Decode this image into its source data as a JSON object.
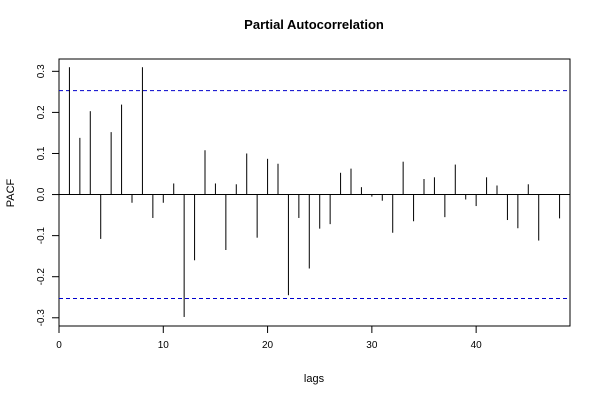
{
  "chart_data": {
    "type": "bar",
    "title": "Partial Autocorrelation",
    "xlabel": "lags",
    "ylabel": "PACF",
    "xlim": [
      0,
      49
    ],
    "ylim": [
      -0.32,
      0.33
    ],
    "xticks": [
      0,
      10,
      20,
      30,
      40
    ],
    "yticks": [
      -0.3,
      -0.2,
      -0.1,
      0.0,
      0.1,
      0.2,
      0.3
    ],
    "ytick_labels": [
      "-0.3",
      "-0.2",
      "-0.1",
      "0.0",
      "0.1",
      "0.2",
      "0.3"
    ],
    "confidence_band": [
      -0.253,
      0.253
    ],
    "confidence_color": "#0000cc",
    "bar_color": "#000000",
    "grid": false,
    "x": [
      1,
      2,
      3,
      4,
      5,
      6,
      7,
      8,
      9,
      10,
      11,
      12,
      13,
      14,
      15,
      16,
      17,
      18,
      19,
      20,
      21,
      22,
      23,
      24,
      25,
      26,
      27,
      28,
      29,
      30,
      31,
      32,
      33,
      34,
      35,
      36,
      37,
      38,
      39,
      40,
      41,
      42,
      43,
      44,
      45,
      46,
      47,
      48
    ],
    "values": [
      0.31,
      0.138,
      0.203,
      -0.108,
      0.152,
      0.219,
      -0.02,
      0.31,
      -0.057,
      -0.02,
      0.027,
      -0.298,
      -0.16,
      0.108,
      0.027,
      -0.135,
      0.025,
      0.1,
      -0.105,
      0.087,
      0.075,
      -0.245,
      -0.057,
      -0.18,
      -0.083,
      -0.072,
      0.053,
      0.063,
      0.018,
      -0.005,
      -0.015,
      -0.093,
      0.08,
      -0.065,
      0.038,
      0.042,
      -0.055,
      0.073,
      -0.012,
      -0.028,
      0.042,
      0.022,
      -0.062,
      -0.082,
      0.025,
      -0.112,
      0.0,
      -0.058
    ]
  }
}
